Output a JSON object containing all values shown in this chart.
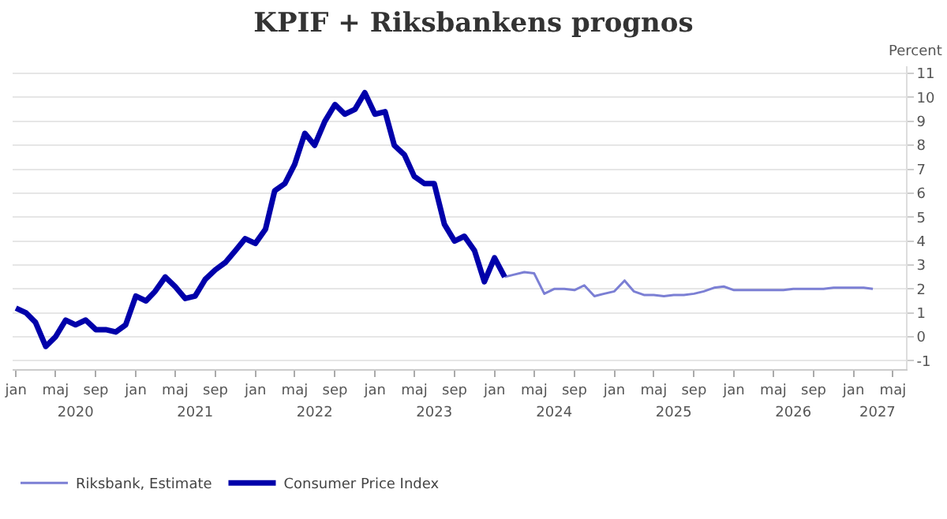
{
  "chart_data": {
    "type": "line",
    "title": "KPIF + Riksbankens prognos",
    "ylabel": "Percent",
    "xlim": [
      "2019-12-22",
      "2027-06-10"
    ],
    "xticks": [
      {
        "value": "2020-01",
        "label": "jan"
      },
      {
        "value": "2020-05",
        "label": "maj"
      },
      {
        "value": "2020-09",
        "label": "sep"
      },
      {
        "value": "2021-01",
        "label": "jan"
      },
      {
        "value": "2021-05",
        "label": "maj"
      },
      {
        "value": "2021-09",
        "label": "sep"
      },
      {
        "value": "2022-01",
        "label": "jan"
      },
      {
        "value": "2022-05",
        "label": "maj"
      },
      {
        "value": "2022-09",
        "label": "sep"
      },
      {
        "value": "2023-01",
        "label": "jan"
      },
      {
        "value": "2023-05",
        "label": "maj"
      },
      {
        "value": "2023-09",
        "label": "sep"
      },
      {
        "value": "2024-01",
        "label": "jan"
      },
      {
        "value": "2024-05",
        "label": "maj"
      },
      {
        "value": "2024-09",
        "label": "sep"
      },
      {
        "value": "2025-01",
        "label": "jan"
      },
      {
        "value": "2025-05",
        "label": "maj"
      },
      {
        "value": "2025-09",
        "label": "sep"
      },
      {
        "value": "2026-01",
        "label": "jan"
      },
      {
        "value": "2026-05",
        "label": "maj"
      },
      {
        "value": "2026-09",
        "label": "sep"
      },
      {
        "value": "2027-01",
        "label": "jan"
      },
      {
        "value": "2027-05",
        "label": "maj"
      }
    ],
    "ylim": [
      -1.35,
      11.3
    ],
    "yticks": [
      -1,
      0,
      1,
      2,
      3,
      4,
      5,
      6,
      7,
      8,
      9,
      10,
      11
    ],
    "grid": "y",
    "legend": "bottom left",
    "x2lim": [
      "2019-12-22",
      "2027-06-10"
    ],
    "x2ticks": [
      {
        "value": "2020-07",
        "label": "2020"
      },
      {
        "value": "2021-07",
        "label": "2021"
      },
      {
        "value": "2022-07",
        "label": "2022"
      },
      {
        "value": "2023-07",
        "label": "2023"
      },
      {
        "value": "2024-07",
        "label": "2024"
      },
      {
        "value": "2025-07",
        "label": "2025"
      },
      {
        "value": "2026-07",
        "label": "2026"
      },
      {
        "value": "2027-03-15",
        "label": "2027"
      }
    ],
    "series": [
      {
        "name": "Riksbank, Estimate",
        "color": "#7b7fd4",
        "x": [
          "2024-02",
          "2024-03",
          "2024-04",
          "2024-05",
          "2024-06",
          "2024-07",
          "2024-08",
          "2024-09",
          "2024-10",
          "2024-11",
          "2024-12",
          "2025-01",
          "2025-02",
          "2025-03",
          "2025-04",
          "2025-05",
          "2025-06",
          "2025-07",
          "2025-08",
          "2025-09",
          "2025-10",
          "2025-11",
          "2025-12",
          "2026-01",
          "2026-02",
          "2026-03",
          "2026-04",
          "2026-05",
          "2026-06",
          "2026-07",
          "2026-08",
          "2026-09",
          "2026-10",
          "2026-11",
          "2026-12",
          "2027-01",
          "2027-02",
          "2027-03"
        ],
        "values": [
          2.5,
          2.6,
          2.7,
          2.65,
          1.8,
          2.0,
          2.0,
          1.95,
          2.15,
          1.7,
          1.8,
          1.9,
          2.35,
          1.9,
          1.75,
          1.75,
          1.7,
          1.75,
          1.75,
          1.8,
          1.9,
          2.05,
          2.1,
          1.95,
          1.95,
          1.95,
          1.95,
          1.95,
          1.95,
          2.0,
          2.0,
          2.0,
          2.0,
          2.05,
          2.05,
          2.05,
          2.05,
          2.0
        ]
      },
      {
        "name": "Consumer Price Index",
        "color": "#0000aa",
        "x": [
          "2020-01",
          "2020-02",
          "2020-03",
          "2020-04",
          "2020-05",
          "2020-06",
          "2020-07",
          "2020-08",
          "2020-09",
          "2020-10",
          "2020-11",
          "2020-12",
          "2021-01",
          "2021-02",
          "2021-03",
          "2021-04",
          "2021-05",
          "2021-06",
          "2021-07",
          "2021-08",
          "2021-09",
          "2021-10",
          "2021-11",
          "2021-12",
          "2022-01",
          "2022-02",
          "2022-03",
          "2022-04",
          "2022-05",
          "2022-06",
          "2022-07",
          "2022-08",
          "2022-09",
          "2022-10",
          "2022-11",
          "2022-12",
          "2023-01",
          "2023-02",
          "2023-03",
          "2023-04",
          "2023-05",
          "2023-06",
          "2023-07",
          "2023-08",
          "2023-09",
          "2023-10",
          "2023-11",
          "2023-12",
          "2024-01",
          "2024-02"
        ],
        "values": [
          1.2,
          1.0,
          0.6,
          -0.4,
          0.0,
          0.7,
          0.5,
          0.7,
          0.3,
          0.3,
          0.2,
          0.5,
          1.7,
          1.5,
          1.9,
          2.5,
          2.1,
          1.6,
          1.7,
          2.4,
          2.8,
          3.1,
          3.6,
          4.1,
          3.9,
          4.5,
          6.1,
          6.4,
          7.2,
          8.5,
          8.0,
          9.0,
          9.7,
          9.3,
          9.5,
          10.2,
          9.3,
          9.4,
          8.0,
          7.6,
          6.7,
          6.4,
          6.4,
          4.7,
          4.0,
          4.2,
          3.6,
          2.3,
          3.3,
          2.5
        ]
      }
    ]
  }
}
